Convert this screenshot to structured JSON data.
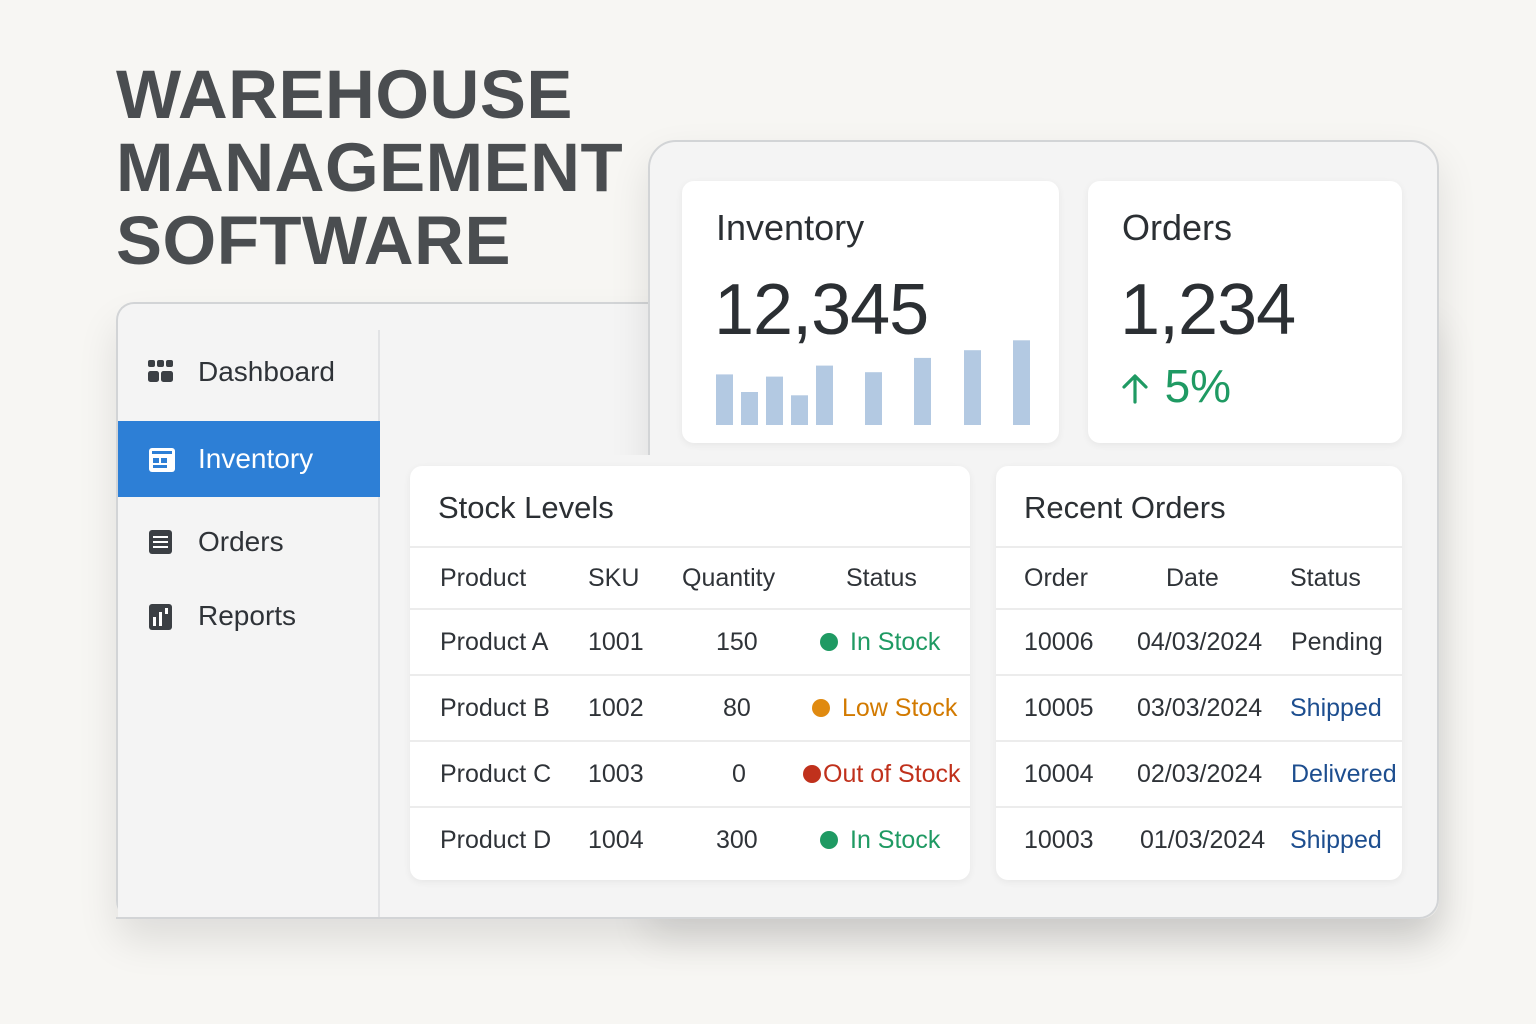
{
  "hero": {
    "line1": "WAREHOUSE",
    "line2": "MANAGEMENT",
    "line3": "SOFTWARE"
  },
  "sidebar": {
    "items": [
      {
        "label": "Dashboard",
        "icon": "grid-icon",
        "active": false
      },
      {
        "label": "Inventory",
        "icon": "inventory-icon",
        "active": true
      },
      {
        "label": "Orders",
        "icon": "list-icon",
        "active": false
      },
      {
        "label": "Reports",
        "icon": "reports-icon",
        "active": false
      }
    ]
  },
  "cards": {
    "inventory": {
      "label": "Inventory",
      "value": "12,345"
    },
    "orders": {
      "label": "Orders",
      "value": "1,234",
      "trend": "5%",
      "trend_icon": "arrow-up-icon"
    }
  },
  "chart_data": {
    "type": "bar",
    "values": [
      46,
      30,
      44,
      27,
      54,
      48,
      61,
      68,
      77
    ],
    "ylim": [
      0,
      80
    ],
    "color": "#b3c9e2"
  },
  "stock": {
    "title": "Stock Levels",
    "columns": [
      "Product",
      "SKU",
      "Quantity",
      "Status"
    ],
    "rows": [
      {
        "product": "Product A",
        "sku": "1001",
        "qty": "150",
        "status": "In Stock",
        "color": "#1f9a63"
      },
      {
        "product": "Product B",
        "sku": "1002",
        "qty": "80",
        "status": "Low Stock",
        "color": "#e08a10"
      },
      {
        "product": "Product C",
        "sku": "1003",
        "qty": "0",
        "status": "Out of Stock",
        "color": "#c0311c"
      },
      {
        "product": "Product D",
        "sku": "1004",
        "qty": "300",
        "status": "In Stock",
        "color": "#1f9a63"
      }
    ]
  },
  "orders_panel": {
    "title": "Recent Orders",
    "columns": [
      "Order",
      "Date",
      "Status"
    ],
    "rows": [
      {
        "order": "10006",
        "date": "04/03/2024",
        "status": "Pending"
      },
      {
        "order": "10005",
        "date": "03/03/2024",
        "status": "Shipped"
      },
      {
        "order": "10004",
        "date": "02/03/2024",
        "status": "Delivered"
      },
      {
        "order": "10003",
        "date": "01/03/2024",
        "status": "Shipped"
      }
    ]
  },
  "colors": {
    "accent": "#2d7fd6",
    "green": "#1f9a63",
    "orange": "#d27a00",
    "red": "#c0311c",
    "blue_link": "#1d4e8f"
  }
}
